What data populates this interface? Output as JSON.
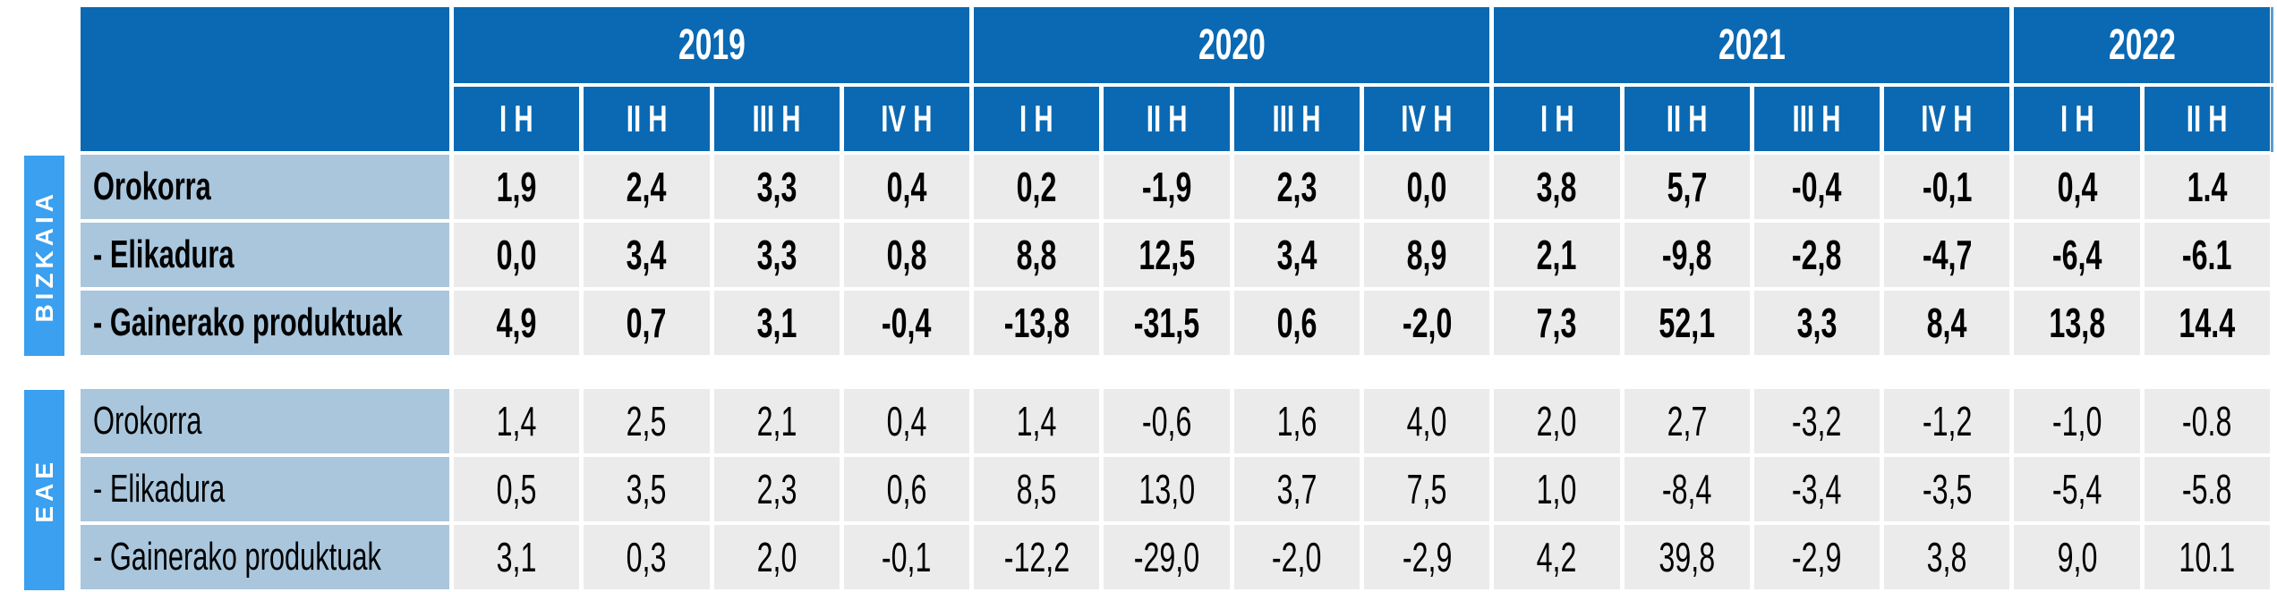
{
  "chart_data": {
    "type": "table",
    "col_groups": [
      {
        "year": "2019",
        "cols": [
          "I H",
          "II H",
          "III H",
          "IV H"
        ]
      },
      {
        "year": "2020",
        "cols": [
          "I H",
          "II H",
          "III H",
          "IV H"
        ]
      },
      {
        "year": "2021",
        "cols": [
          "I H",
          "II H",
          "III H",
          "IV H"
        ]
      },
      {
        "year": "2022",
        "cols": [
          "I H",
          "II H"
        ]
      }
    ],
    "sections": [
      {
        "name": "BIZKAIA",
        "rows": [
          {
            "label": "Orokorra",
            "values": [
              "1,9",
              "2,4",
              "3,3",
              "0,4",
              "0,2",
              "-1,9",
              "2,3",
              "0,0",
              "3,8",
              "5,7",
              "-0,4",
              "-0,1",
              "0,4",
              "1.4"
            ]
          },
          {
            "label": "- Elikadura",
            "values": [
              "0,0",
              "3,4",
              "3,3",
              "0,8",
              "8,8",
              "12,5",
              "3,4",
              "8,9",
              "2,1",
              "-9,8",
              "-2,8",
              "-4,7",
              "-6,4",
              "-6.1"
            ]
          },
          {
            "label": "- Gainerako produktuak",
            "values": [
              "4,9",
              "0,7",
              "3,1",
              "-0,4",
              "-13,8",
              "-31,5",
              "0,6",
              "-2,0",
              "7,3",
              "52,1",
              "3,3",
              "8,4",
              "13,8",
              "14.4"
            ]
          }
        ]
      },
      {
        "name": "EAE",
        "rows": [
          {
            "label": "Orokorra",
            "values": [
              "1,4",
              "2,5",
              "2,1",
              "0,4",
              "1,4",
              "-0,6",
              "1,6",
              "4,0",
              "2,0",
              "2,7",
              "-3,2",
              "-1,2",
              "-1,0",
              "-0.8"
            ]
          },
          {
            "label": "- Elikadura",
            "values": [
              "0,5",
              "3,5",
              "2,3",
              "0,6",
              "8,5",
              "13,0",
              "3,7",
              "7,5",
              "1,0",
              "-8,4",
              "-3,4",
              "-3,5",
              "-5,4",
              "-5.8"
            ]
          },
          {
            "label": "- Gainerako produktuak",
            "values": [
              "3,1",
              "0,3",
              "2,0",
              "-0,1",
              "-12,2",
              "-29,0",
              "-2,0",
              "-2,9",
              "4,2",
              "39,8",
              "-2,9",
              "3,8",
              "9,0",
              "10.1"
            ]
          }
        ]
      }
    ],
    "layout": {
      "grid": "off",
      "decimal_separator_note": "comma in all columns except last (2022 II H) which uses period"
    }
  },
  "colors": {
    "header_blue": "#0a69b2",
    "band_blue": "#3aa0ef",
    "row_label_blue": "#a9c6dc",
    "cell_gray": "#ebebeb",
    "text_black": "#000000",
    "background_white": "#ffffff"
  }
}
